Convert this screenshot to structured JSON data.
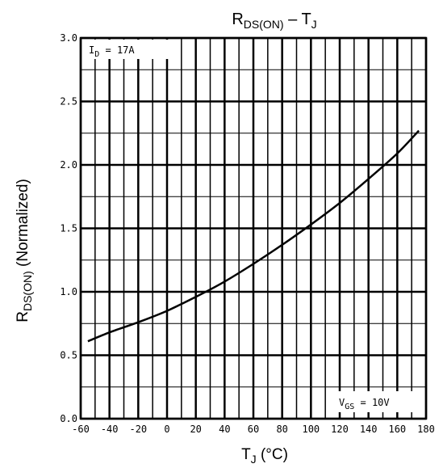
{
  "chart_data": {
    "type": "line",
    "title": {
      "main": "R",
      "sub": "DS(ON)",
      "mid": " – T",
      "sub2": "J"
    },
    "xlabel": {
      "main": "T",
      "sub": "J",
      "rest": " (°C)"
    },
    "ylabel": {
      "main": "R",
      "sub": "DS(ON)",
      "rest": " (Normalized)"
    },
    "xlim": [
      -60,
      180
    ],
    "ylim": [
      0.0,
      3.0
    ],
    "x_ticks": [
      -60,
      -40,
      -20,
      0,
      20,
      40,
      60,
      80,
      100,
      120,
      140,
      160,
      180
    ],
    "x_tick_labels": [
      "-60",
      "-40",
      "-20",
      "0",
      "20",
      "40",
      "60",
      "80",
      "100",
      "120",
      "140",
      "160",
      "180"
    ],
    "y_ticks": [
      0.0,
      0.5,
      1.0,
      1.5,
      2.0,
      2.5,
      3.0
    ],
    "y_tick_labels": [
      "0.0",
      "0.5",
      "1.0",
      "1.5",
      "2.0",
      "2.5",
      "3.0"
    ],
    "y_minor_step": 0.25,
    "grid": true,
    "annotations": {
      "id": {
        "main": "I",
        "sub": "D",
        "rest": " = 17A"
      },
      "vgs": {
        "main": "V",
        "sub": "GS",
        "rest": " = 10V"
      }
    },
    "series": [
      {
        "x": [
          -55,
          -40,
          -20,
          0,
          20,
          40,
          60,
          80,
          100,
          120,
          140,
          160,
          175
        ],
        "y": [
          0.61,
          0.68,
          0.76,
          0.85,
          0.96,
          1.08,
          1.22,
          1.37,
          1.53,
          1.7,
          1.89,
          2.09,
          2.27
        ]
      }
    ]
  }
}
